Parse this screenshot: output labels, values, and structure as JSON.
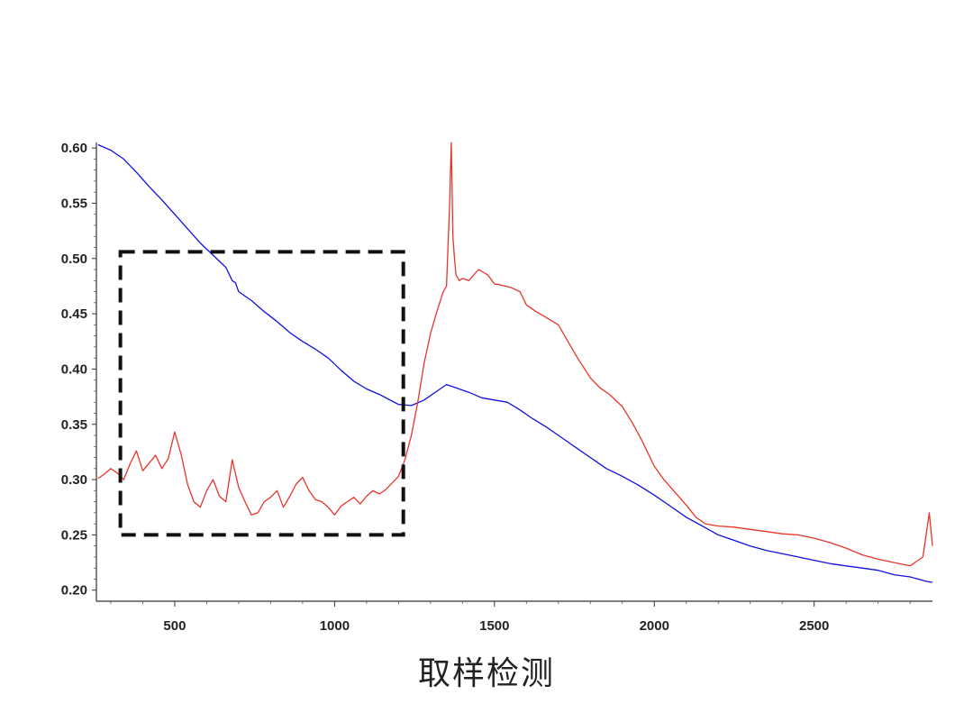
{
  "chart_data": {
    "type": "line",
    "title": "",
    "xlabel": "",
    "ylabel": "",
    "xlim": [
      255,
      2870
    ],
    "ylim": [
      0.19,
      0.605
    ],
    "x_ticks": [
      500,
      1000,
      1500,
      2000,
      2500
    ],
    "y_ticks": [
      0.2,
      0.25,
      0.3,
      0.35,
      0.4,
      0.45,
      0.5,
      0.55,
      0.6
    ],
    "x_tick_labels": [
      "500",
      "1000",
      "1500",
      "2000",
      "2500"
    ],
    "y_tick_labels": [
      "0.20",
      "0.25",
      "0.30",
      "0.35",
      "0.40",
      "0.45",
      "0.50",
      "0.55",
      "0.60"
    ],
    "grid": false,
    "legend": "none",
    "series": [
      {
        "color": "#1010e0",
        "x": [
          260,
          300,
          340,
          380,
          420,
          460,
          500,
          540,
          580,
          620,
          660,
          680,
          690,
          700,
          740,
          780,
          820,
          860,
          900,
          940,
          980,
          1020,
          1060,
          1100,
          1140,
          1180,
          1200,
          1240,
          1280,
          1320,
          1350,
          1380,
          1420,
          1460,
          1500,
          1540,
          1580,
          1620,
          1660,
          1700,
          1750,
          1800,
          1850,
          1900,
          1950,
          2000,
          2050,
          2100,
          2150,
          2200,
          2250,
          2300,
          2350,
          2400,
          2450,
          2500,
          2550,
          2600,
          2650,
          2700,
          2750,
          2800,
          2850,
          2870
        ],
        "y": [
          0.603,
          0.598,
          0.59,
          0.578,
          0.565,
          0.553,
          0.54,
          0.527,
          0.514,
          0.503,
          0.492,
          0.48,
          0.478,
          0.47,
          0.462,
          0.452,
          0.443,
          0.433,
          0.425,
          0.418,
          0.41,
          0.399,
          0.389,
          0.382,
          0.377,
          0.371,
          0.368,
          0.367,
          0.372,
          0.38,
          0.386,
          0.383,
          0.379,
          0.374,
          0.372,
          0.37,
          0.363,
          0.355,
          0.348,
          0.34,
          0.33,
          0.32,
          0.31,
          0.303,
          0.295,
          0.286,
          0.276,
          0.266,
          0.258,
          0.25,
          0.245,
          0.24,
          0.236,
          0.233,
          0.23,
          0.227,
          0.224,
          0.222,
          0.22,
          0.218,
          0.214,
          0.212,
          0.208,
          0.207
        ]
      },
      {
        "color": "#e8342a",
        "x": [
          260,
          280,
          300,
          320,
          340,
          360,
          380,
          400,
          420,
          440,
          460,
          480,
          500,
          520,
          540,
          560,
          580,
          600,
          620,
          640,
          660,
          680,
          700,
          720,
          740,
          760,
          780,
          800,
          820,
          840,
          860,
          880,
          900,
          920,
          940,
          960,
          980,
          1000,
          1020,
          1040,
          1060,
          1080,
          1100,
          1120,
          1140,
          1160,
          1180,
          1200,
          1220,
          1240,
          1260,
          1280,
          1300,
          1320,
          1340,
          1350,
          1360,
          1365,
          1370,
          1375,
          1380,
          1390,
          1400,
          1420,
          1450,
          1480,
          1500,
          1520,
          1550,
          1580,
          1600,
          1630,
          1660,
          1700,
          1730,
          1760,
          1800,
          1830,
          1860,
          1900,
          1930,
          1960,
          2000,
          2030,
          2060,
          2100,
          2130,
          2160,
          2200,
          2250,
          2300,
          2350,
          2400,
          2450,
          2500,
          2550,
          2600,
          2650,
          2700,
          2750,
          2800,
          2840,
          2860,
          2870
        ],
        "y": [
          0.301,
          0.305,
          0.31,
          0.306,
          0.3,
          0.314,
          0.326,
          0.308,
          0.315,
          0.322,
          0.31,
          0.319,
          0.343,
          0.323,
          0.296,
          0.28,
          0.275,
          0.29,
          0.3,
          0.285,
          0.28,
          0.318,
          0.293,
          0.28,
          0.268,
          0.27,
          0.28,
          0.284,
          0.29,
          0.275,
          0.285,
          0.296,
          0.302,
          0.29,
          0.282,
          0.28,
          0.275,
          0.268,
          0.276,
          0.28,
          0.284,
          0.278,
          0.285,
          0.29,
          0.287,
          0.291,
          0.297,
          0.303,
          0.318,
          0.34,
          0.37,
          0.405,
          0.432,
          0.452,
          0.47,
          0.475,
          0.55,
          0.605,
          0.52,
          0.5,
          0.485,
          0.48,
          0.482,
          0.48,
          0.49,
          0.485,
          0.477,
          0.476,
          0.474,
          0.47,
          0.458,
          0.452,
          0.447,
          0.44,
          0.425,
          0.41,
          0.392,
          0.383,
          0.377,
          0.366,
          0.352,
          0.336,
          0.312,
          0.3,
          0.29,
          0.277,
          0.266,
          0.26,
          0.258,
          0.257,
          0.255,
          0.253,
          0.251,
          0.25,
          0.247,
          0.243,
          0.238,
          0.232,
          0.228,
          0.225,
          0.222,
          0.23,
          0.27,
          0.24
        ]
      }
    ],
    "annotations": [
      {
        "type": "dashed-rectangle",
        "x_range": [
          330,
          1215
        ],
        "y_range": [
          0.25,
          0.506
        ]
      }
    ]
  },
  "caption": "取样检测"
}
